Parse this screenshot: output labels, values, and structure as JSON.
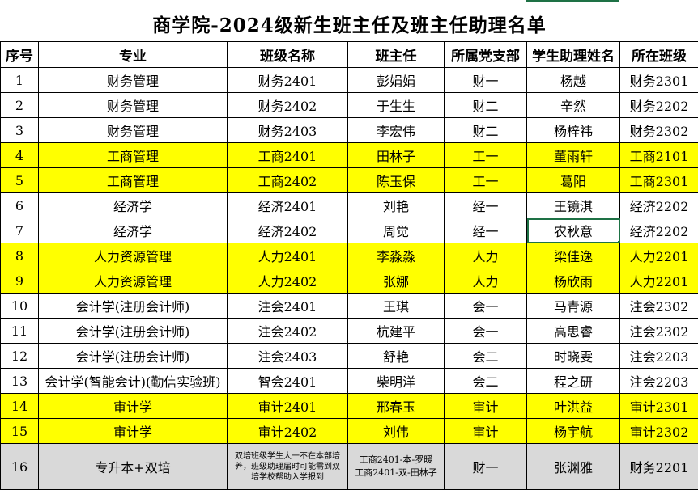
{
  "title": "商学院-2024级新生班主任及班主任助理名单",
  "headers": [
    "序号",
    "专业",
    "班级名称",
    "班主任",
    "所属党支部",
    "学生助理姓名",
    "所在班级"
  ],
  "rows": [
    {
      "no": "1",
      "major": "财务管理",
      "class": "财务2401",
      "teacher": "彭娟娟",
      "branch": "财一",
      "assistant": "杨越",
      "assistant_class": "财务2301",
      "style": "white"
    },
    {
      "no": "2",
      "major": "财务管理",
      "class": "财务2402",
      "teacher": "于生生",
      "branch": "财二",
      "assistant": "辛然",
      "assistant_class": "财务2202",
      "style": "white"
    },
    {
      "no": "3",
      "major": "财务管理",
      "class": "财务2403",
      "teacher": "李宏伟",
      "branch": "财二",
      "assistant": "杨梓祎",
      "assistant_class": "财务2302",
      "style": "white"
    },
    {
      "no": "4",
      "major": "工商管理",
      "class": "工商2401",
      "teacher": "田林子",
      "branch": "工一",
      "assistant": "董雨轩",
      "assistant_class": "工商2101",
      "style": "yellow"
    },
    {
      "no": "5",
      "major": "工商管理",
      "class": "工商2402",
      "teacher": "陈玉保",
      "branch": "工一",
      "assistant": "葛阳",
      "assistant_class": "工商2301",
      "style": "yellow"
    },
    {
      "no": "6",
      "major": "经济学",
      "class": "经济2401",
      "teacher": "刘艳",
      "branch": "经一",
      "assistant": "王镜淇",
      "assistant_class": "经济2202",
      "style": "white"
    },
    {
      "no": "7",
      "major": "经济学",
      "class": "经济2402",
      "teacher": "周觉",
      "branch": "经一",
      "assistant": "农秋意",
      "assistant_class": "经济2202",
      "style": "white"
    },
    {
      "no": "8",
      "major": "人力资源管理",
      "class": "人力2401",
      "teacher": "李淼淼",
      "branch": "人力",
      "assistant": "梁佳逸",
      "assistant_class": "人力2201",
      "style": "yellow"
    },
    {
      "no": "9",
      "major": "人力资源管理",
      "class": "人力2402",
      "teacher": "张娜",
      "branch": "人力",
      "assistant": "杨欣雨",
      "assistant_class": "人力2201",
      "style": "yellow"
    },
    {
      "no": "10",
      "major": "会计学(注册会计师)",
      "class": "注会2401",
      "teacher": "王琪",
      "branch": "会一",
      "assistant": "马青源",
      "assistant_class": "注会2302",
      "style": "white"
    },
    {
      "no": "11",
      "major": "会计学(注册会计师)",
      "class": "注会2402",
      "teacher": "杭建平",
      "branch": "会一",
      "assistant": "高思睿",
      "assistant_class": "注会2302",
      "style": "white"
    },
    {
      "no": "12",
      "major": "会计学(注册会计师)",
      "class": "注会2403",
      "teacher": "舒艳",
      "branch": "会二",
      "assistant": "时晓雯",
      "assistant_class": "注会2203",
      "style": "white"
    },
    {
      "no": "13",
      "major": "会计学(智能会计)(勤信实验班)",
      "class": "智会2401",
      "teacher": "柴明洋",
      "branch": "会二",
      "assistant": "程之研",
      "assistant_class": "注会2203",
      "style": "white"
    },
    {
      "no": "14",
      "major": "审计学",
      "class": "审计2401",
      "teacher": "邢春玉",
      "branch": "审计",
      "assistant": "叶洪益",
      "assistant_class": "审计2301",
      "style": "yellow"
    },
    {
      "no": "15",
      "major": "审计学",
      "class": "审计2402",
      "teacher": "刘伟",
      "branch": "审计",
      "assistant": "杨宇航",
      "assistant_class": "审计2302",
      "style": "yellow"
    }
  ],
  "last_row": {
    "no": "16",
    "major": "专升本+双培",
    "class_note_lines": [
      "双培班级学生大一不在本部培",
      "养，班级助理届时可能需到双",
      "培学校帮助入学报到"
    ],
    "teacher_lines": [
      "工商2401-本-罗暖",
      "工商2401-双-田林子"
    ],
    "branch": "财一",
    "assistant": "张渊雅",
    "assistant_class": "财务2201"
  },
  "colors": {
    "yellow": "#ffff00",
    "gray": "#d9d9d9",
    "selection": "#1e7145"
  }
}
